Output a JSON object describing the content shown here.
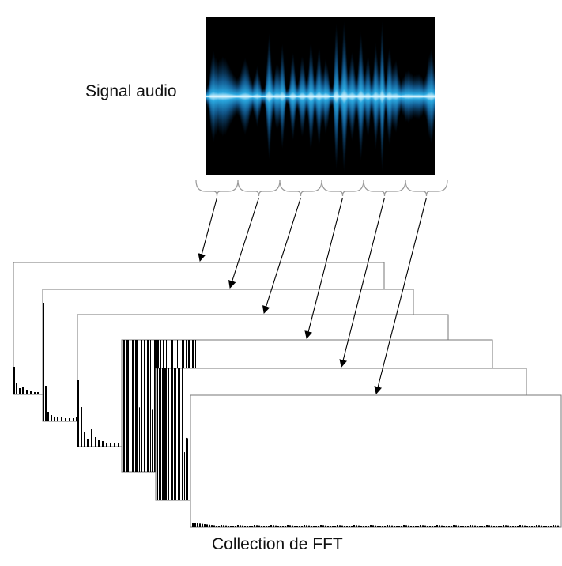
{
  "labels": {
    "signal": "Signal audio",
    "collection": "Collection de FFT"
  },
  "colors": {
    "waveform_background": "#000000",
    "waveform_glow": "#2aa8e0",
    "waveform_core": "#d8f6ff",
    "frame_border": "#777777",
    "brace": "#9a9a9a",
    "arrow": "#000000",
    "spectrum_bars": "#000000"
  },
  "diagram": {
    "segment_count": 6,
    "fft_frame_count": 6
  }
}
